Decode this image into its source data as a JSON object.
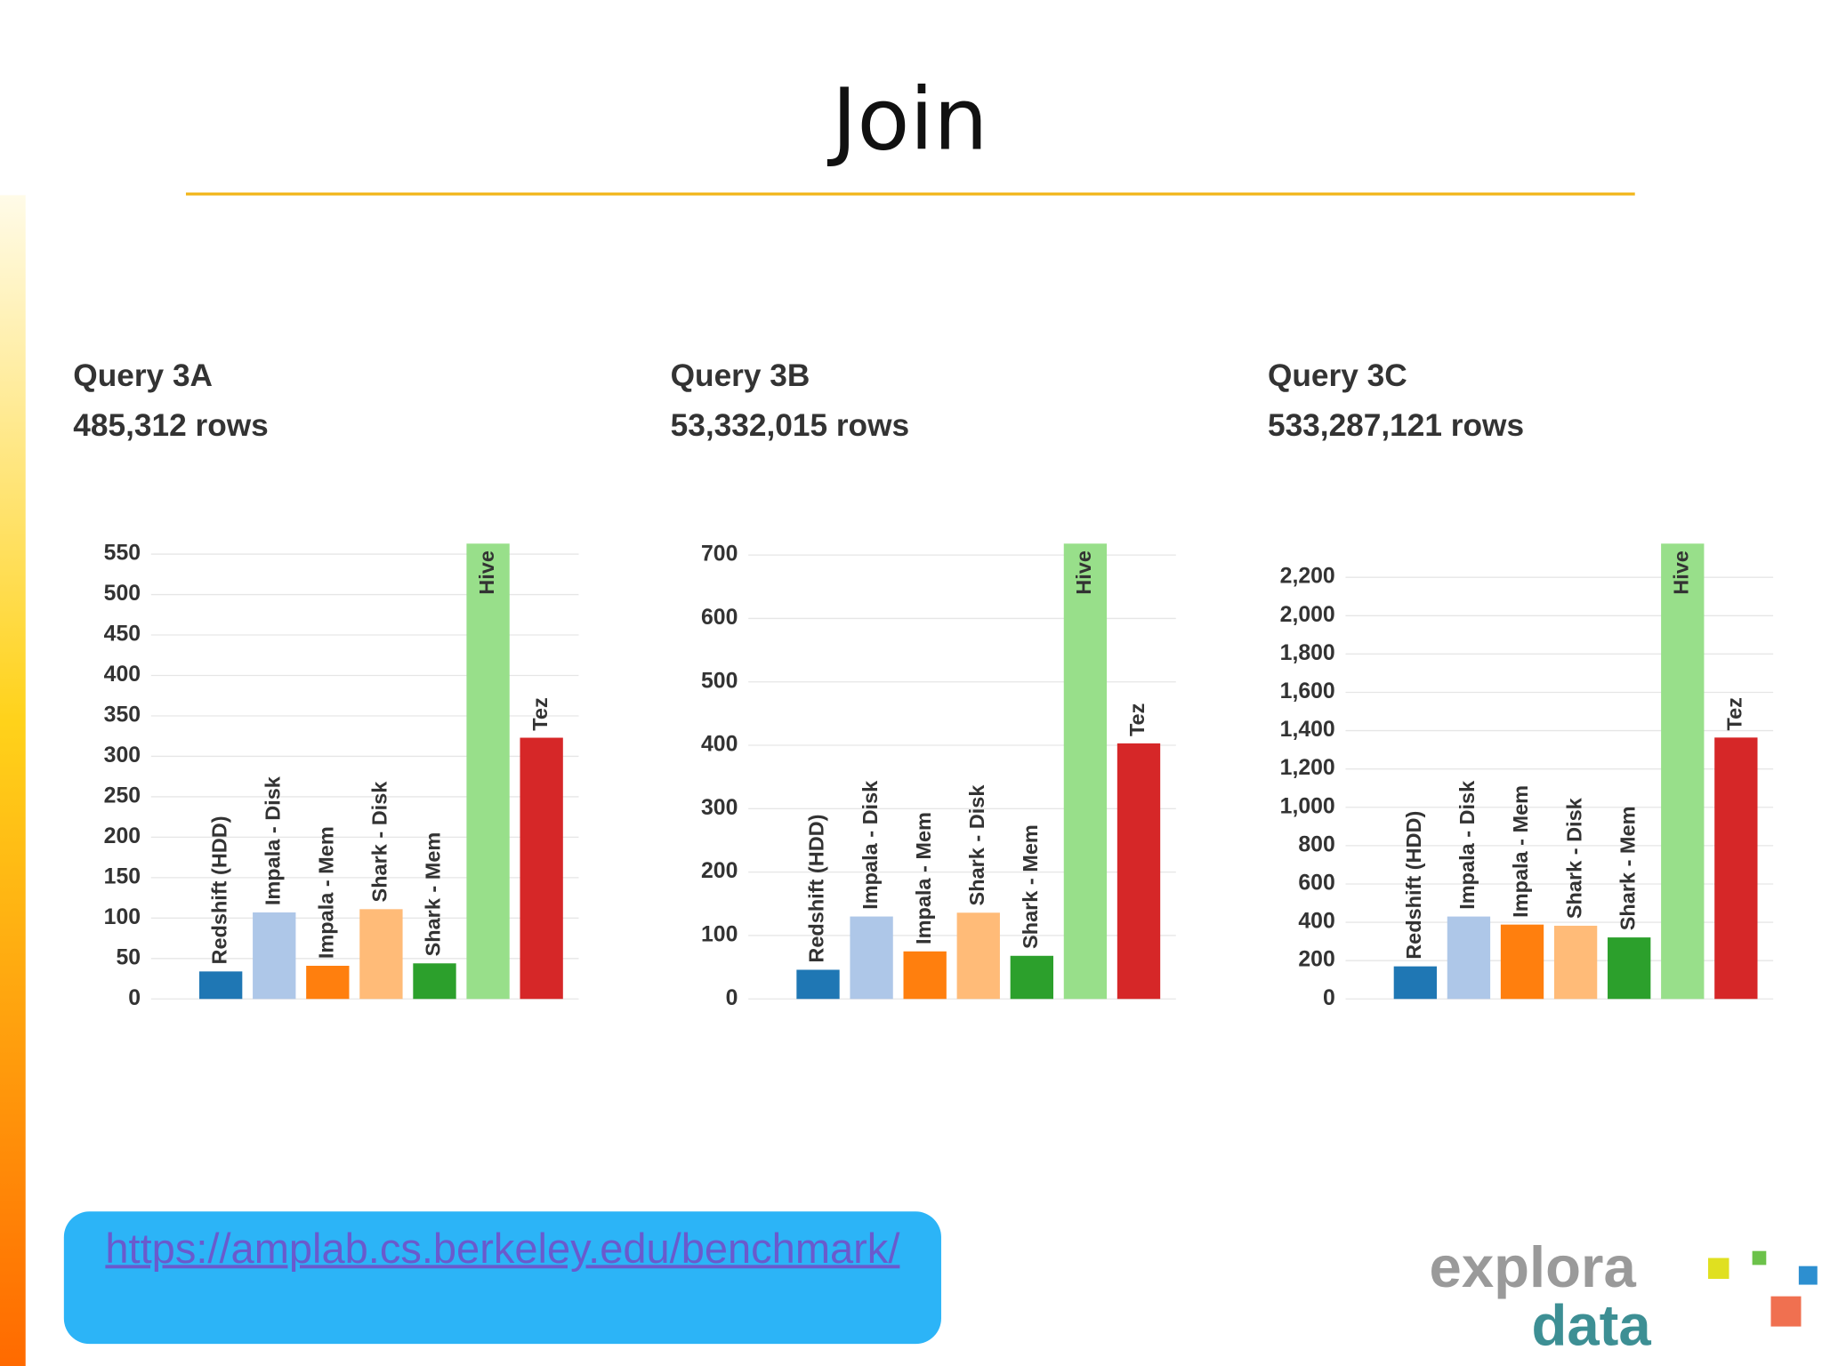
{
  "title": "Join",
  "link": "https://amplab.cs.berkeley.edu/benchmark/",
  "logo": {
    "top": "explora",
    "bottom": "data"
  },
  "chart_data": [
    {
      "type": "bar",
      "title": "Query 3A",
      "subtitle": "485,312 rows",
      "categories": [
        "Redshift (HDD)",
        "Impala - Disk",
        "Impala - Mem",
        "Shark - Disk",
        "Shark - Mem",
        "Hive",
        "Tez"
      ],
      "values": [
        34,
        107,
        41,
        111,
        44,
        563,
        323
      ],
      "colors": [
        "#1f77b4",
        "#aec7e8",
        "#ff7f0e",
        "#ffbb78",
        "#2ca02c",
        "#98df8a",
        "#d62728"
      ],
      "ylim": [
        0,
        563
      ],
      "yticks": [
        0,
        50,
        100,
        150,
        200,
        250,
        300,
        350,
        400,
        450,
        500,
        550
      ],
      "grid": true
    },
    {
      "type": "bar",
      "title": "Query 3B",
      "subtitle": "53,332,015 rows",
      "categories": [
        "Redshift (HDD)",
        "Impala - Disk",
        "Impala - Mem",
        "Shark - Disk",
        "Shark - Mem",
        "Hive",
        "Tez"
      ],
      "values": [
        46,
        130,
        75,
        136,
        68,
        718,
        403
      ],
      "colors": [
        "#1f77b4",
        "#aec7e8",
        "#ff7f0e",
        "#ffbb78",
        "#2ca02c",
        "#98df8a",
        "#d62728"
      ],
      "ylim": [
        0,
        718
      ],
      "yticks": [
        0,
        100,
        200,
        300,
        400,
        500,
        600,
        700
      ],
      "grid": true
    },
    {
      "type": "bar",
      "title": "Query 3C",
      "subtitle": "533,287,121 rows",
      "categories": [
        "Redshift (HDD)",
        "Impala - Disk",
        "Impala - Mem",
        "Shark - Disk",
        "Shark - Mem",
        "Hive",
        "Tez"
      ],
      "values": [
        170,
        430,
        388,
        382,
        321,
        2376,
        1364
      ],
      "colors": [
        "#1f77b4",
        "#aec7e8",
        "#ff7f0e",
        "#ffbb78",
        "#2ca02c",
        "#98df8a",
        "#d62728"
      ],
      "ylim": [
        0,
        2376
      ],
      "yticks": [
        0,
        200,
        400,
        600,
        800,
        {
          "value": 1000,
          "label": "1,000"
        },
        {
          "value": 1200,
          "label": "1,200"
        },
        {
          "value": 1400,
          "label": "1,400"
        },
        {
          "value": 1600,
          "label": "1,600"
        },
        {
          "value": 1800,
          "label": "1,800"
        },
        {
          "value": 2000,
          "label": "2,000"
        },
        {
          "value": 2200,
          "label": "2,200"
        }
      ],
      "grid": true
    }
  ]
}
